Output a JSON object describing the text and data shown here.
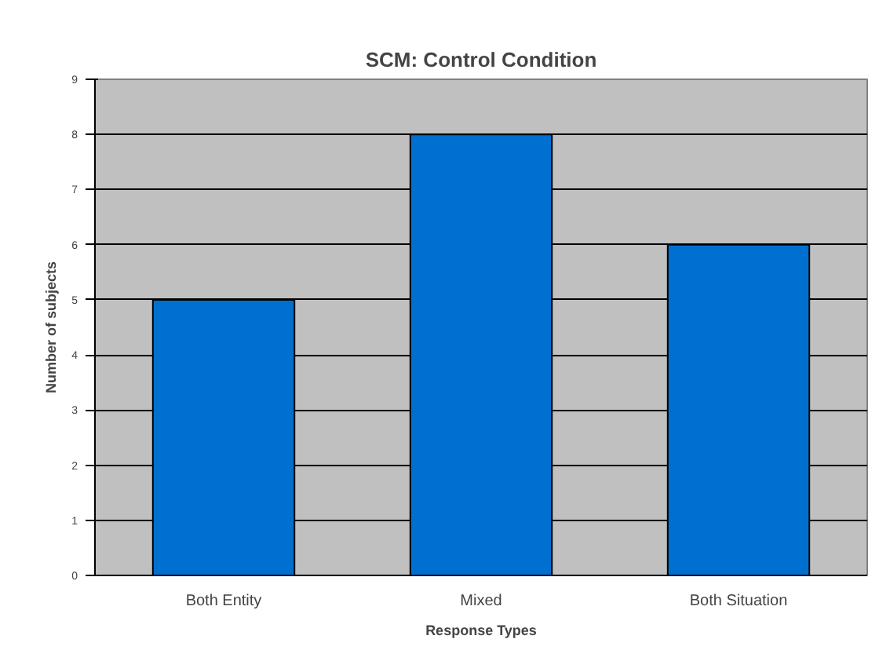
{
  "chart_data": {
    "type": "bar",
    "title": "SCM: Control Condition",
    "categories": [
      "Both Entity",
      "Mixed",
      "Both Situation"
    ],
    "values": [
      5,
      8,
      6
    ],
    "color": "#0070d0",
    "xlabel": "Response Types",
    "ylabel": "Number of subjects",
    "ylim": [
      0,
      9
    ],
    "yticks": [
      0,
      1,
      2,
      3,
      4,
      5,
      6,
      7,
      8,
      9
    ],
    "grid": "y"
  }
}
